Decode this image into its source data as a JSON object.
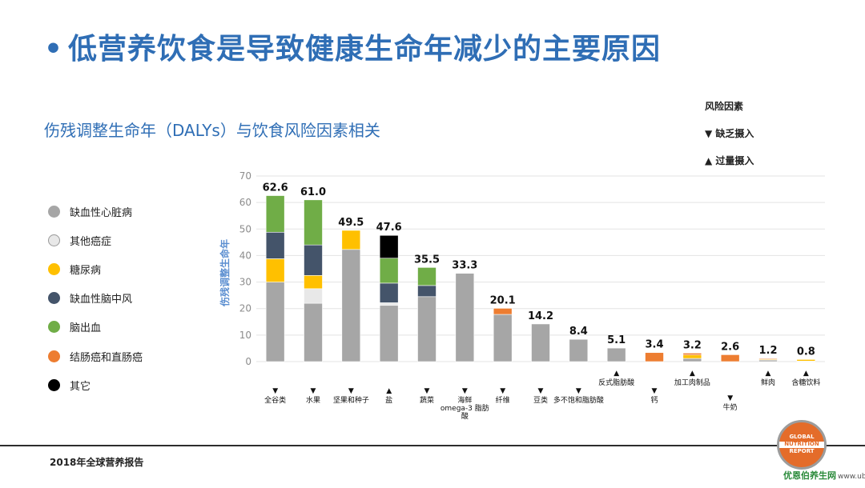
{
  "slide": {
    "bullet": "•",
    "title": "低营养饮食是导致健康生命年减少的主要原因",
    "subtitle": "伤残调整生命年（DALYs）与饮食风险因素相关",
    "footer": "2018年全球营养报告"
  },
  "risk_legend": {
    "title": "风险因素",
    "lack": "▼ 缺乏摄入",
    "excess": "▲ 过量摄入"
  },
  "disease_legend": [
    {
      "label": "缺血性心脏病",
      "color": "#a6a6a6"
    },
    {
      "label": "其他癌症",
      "color": "#e8e8e8"
    },
    {
      "label": "糖尿病",
      "color": "#ffc000"
    },
    {
      "label": "缺血性脑中风",
      "color": "#44546a"
    },
    {
      "label": "脑出血",
      "color": "#70ad47"
    },
    {
      "label": "结肠癌和直肠癌",
      "color": "#ed7d31"
    },
    {
      "label": "其它",
      "color": "#000000"
    }
  ],
  "logo": {
    "top": "GLOBAL",
    "mid": "NUTRITION",
    "bottom": "REPORT"
  },
  "watermark": {
    "brand": "优恩伯养生网",
    "url": "www.ubpai.cn"
  },
  "chart_data": {
    "type": "bar",
    "stacked": true,
    "ylabel": "伤残调整生命年",
    "ylim": [
      0,
      70
    ],
    "yticks": [
      0,
      10,
      20,
      30,
      40,
      50,
      60,
      70
    ],
    "categories": [
      {
        "name": "全谷类",
        "dir": "lack",
        "label_row": 2
      },
      {
        "name": "水果",
        "dir": "lack",
        "label_row": 2
      },
      {
        "name": "坚果和种子",
        "dir": "lack",
        "label_row": 2
      },
      {
        "name": "盐",
        "dir": "excess",
        "label_row": 2
      },
      {
        "name": "蔬菜",
        "dir": "lack",
        "label_row": 2
      },
      {
        "name": "海鲜omega-3脂肪酸",
        "lines": [
          "海鲜",
          "omega-3 脂肪",
          "酸"
        ],
        "dir": "lack",
        "label_row": 2
      },
      {
        "name": "纤维",
        "dir": "lack",
        "label_row": 2
      },
      {
        "name": "豆类",
        "dir": "lack",
        "label_row": 2
      },
      {
        "name": "多不饱和脂肪酸",
        "dir": "lack",
        "label_row": 2
      },
      {
        "name": "反式脂肪酸",
        "dir": "excess",
        "label_row": 1
      },
      {
        "name": "钙",
        "dir": "lack",
        "label_row": 2
      },
      {
        "name": "加工肉制品",
        "dir": "excess",
        "label_row": 1
      },
      {
        "name": "牛奶",
        "dir": "lack",
        "label_row": 3
      },
      {
        "name": "鲜肉",
        "dir": "excess",
        "label_row": 1
      },
      {
        "name": "含糖饮料",
        "dir": "excess",
        "label_row": 1
      }
    ],
    "totals": [
      62.6,
      61.0,
      49.5,
      47.6,
      35.5,
      33.3,
      20.1,
      14.2,
      8.4,
      5.1,
      3.4,
      3.2,
      2.6,
      1.2,
      0.8
    ],
    "total_labels": [
      "62.6",
      "61.0",
      "49.5",
      "47.6",
      "35.5",
      "33.3",
      "20.1",
      "14.2",
      "8.4",
      "5.1",
      "3.4",
      "3.2",
      "2.6",
      "1.2",
      "0.8"
    ],
    "series": [
      {
        "name": "缺血性心脏病",
        "values": [
          30.0,
          22.0,
          42.3,
          21.2,
          24.5,
          33.3,
          17.8,
          14.2,
          8.4,
          5.1,
          0,
          1.2,
          0,
          0.6,
          0.2
        ]
      },
      {
        "name": "其他癌症",
        "values": [
          0,
          5.5,
          0,
          1.0,
          0,
          0,
          0,
          0,
          0,
          0,
          0,
          0,
          0,
          0,
          0
        ]
      },
      {
        "name": "糖尿病",
        "values": [
          8.8,
          5.0,
          7.2,
          0,
          0,
          0,
          0,
          0,
          0,
          0,
          0,
          1.3,
          0,
          0.3,
          0.6
        ]
      },
      {
        "name": "缺血性脑中风",
        "values": [
          10.0,
          11.5,
          0,
          7.4,
          4.2,
          0,
          0,
          0,
          0,
          0,
          0,
          0,
          0,
          0,
          0
        ]
      },
      {
        "name": "脑出血",
        "values": [
          13.8,
          17.0,
          0,
          9.4,
          6.8,
          0,
          0,
          0,
          0,
          0,
          0,
          0,
          0,
          0,
          0
        ]
      },
      {
        "name": "结肠癌和直肠癌",
        "values": [
          0,
          0,
          0,
          0,
          0,
          0,
          2.3,
          0,
          0,
          0,
          3.4,
          0.7,
          2.6,
          0.3,
          0
        ]
      },
      {
        "name": "其它",
        "values": [
          0,
          0,
          0,
          8.6,
          0,
          0,
          0,
          0,
          0,
          0,
          0,
          0,
          0,
          0,
          0
        ]
      }
    ]
  }
}
